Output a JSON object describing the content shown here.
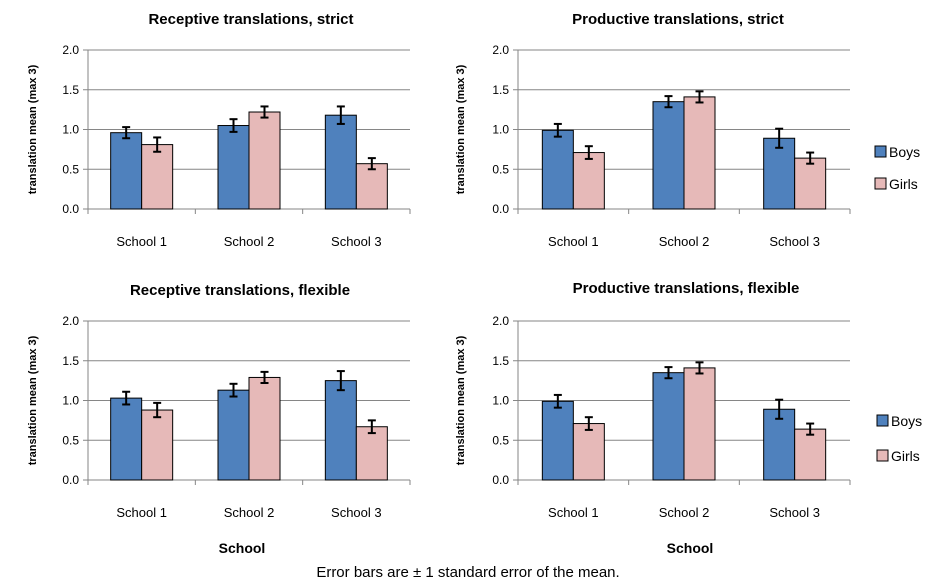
{
  "chart_data": [
    {
      "type": "bar",
      "title": "Receptive translations,  strict",
      "ylabel": "translation mean (max 3)",
      "xlabel": "",
      "categories": [
        "School 1",
        "School 2",
        "School 3"
      ],
      "ylim": [
        0,
        2
      ],
      "yticks": [
        "0.0",
        "0.5",
        "1.0",
        "1.5",
        "2.0"
      ],
      "grid": true,
      "series": [
        {
          "name": "Boys",
          "color": "#4f81bd",
          "values": [
            0.96,
            1.05,
            1.18
          ],
          "errors": [
            0.07,
            0.08,
            0.11
          ]
        },
        {
          "name": "Girls",
          "color": "#e6b9b8",
          "values": [
            0.81,
            1.22,
            0.57
          ],
          "errors": [
            0.09,
            0.07,
            0.07
          ]
        }
      ]
    },
    {
      "type": "bar",
      "title": "Productive translations,  strict",
      "ylabel": "translation mean (max 3)",
      "xlabel": "",
      "categories": [
        "School 1",
        "School 2",
        "School 3"
      ],
      "ylim": [
        0,
        2
      ],
      "yticks": [
        "0.0",
        "0.5",
        "1.0",
        "1.5",
        "2.0"
      ],
      "grid": true,
      "series": [
        {
          "name": "Boys",
          "color": "#4f81bd",
          "values": [
            0.99,
            1.35,
            0.89
          ],
          "errors": [
            0.08,
            0.07,
            0.12
          ]
        },
        {
          "name": "Girls",
          "color": "#e6b9b8",
          "values": [
            0.71,
            1.41,
            0.64
          ],
          "errors": [
            0.08,
            0.07,
            0.07
          ]
        }
      ]
    },
    {
      "type": "bar",
      "title": "Receptive translations,  flexible",
      "ylabel": "translation mean (max 3)",
      "xlabel": "School",
      "categories": [
        "School 1",
        "School 2",
        "School 3"
      ],
      "ylim": [
        0,
        2
      ],
      "yticks": [
        "0.0",
        "0.5",
        "1.0",
        "1.5",
        "2.0"
      ],
      "grid": true,
      "series": [
        {
          "name": "Boys",
          "color": "#4f81bd",
          "values": [
            1.03,
            1.13,
            1.25
          ],
          "errors": [
            0.08,
            0.08,
            0.12
          ]
        },
        {
          "name": "Girls",
          "color": "#e6b9b8",
          "values": [
            0.88,
            1.29,
            0.67
          ],
          "errors": [
            0.09,
            0.07,
            0.08
          ]
        }
      ]
    },
    {
      "type": "bar",
      "title": "Productive translations,  flexible",
      "ylabel": "translation mean (max 3)",
      "xlabel": "School",
      "categories": [
        "School 1",
        "School 2",
        "School 3"
      ],
      "ylim": [
        0,
        2
      ],
      "yticks": [
        "0.0",
        "0.5",
        "1.0",
        "1.5",
        "2.0"
      ],
      "grid": true,
      "series": [
        {
          "name": "Boys",
          "color": "#4f81bd",
          "values": [
            0.99,
            1.35,
            0.89
          ],
          "errors": [
            0.08,
            0.07,
            0.12
          ]
        },
        {
          "name": "Girls",
          "color": "#e6b9b8",
          "values": [
            0.71,
            1.41,
            0.64
          ],
          "errors": [
            0.08,
            0.07,
            0.07
          ]
        }
      ]
    }
  ],
  "legends": [
    {
      "items": [
        "Boys",
        "Girls"
      ]
    },
    {
      "items": [
        "Boys",
        "Girls"
      ]
    }
  ],
  "footnote": "Error bars are ± 1 standard error of the mean."
}
